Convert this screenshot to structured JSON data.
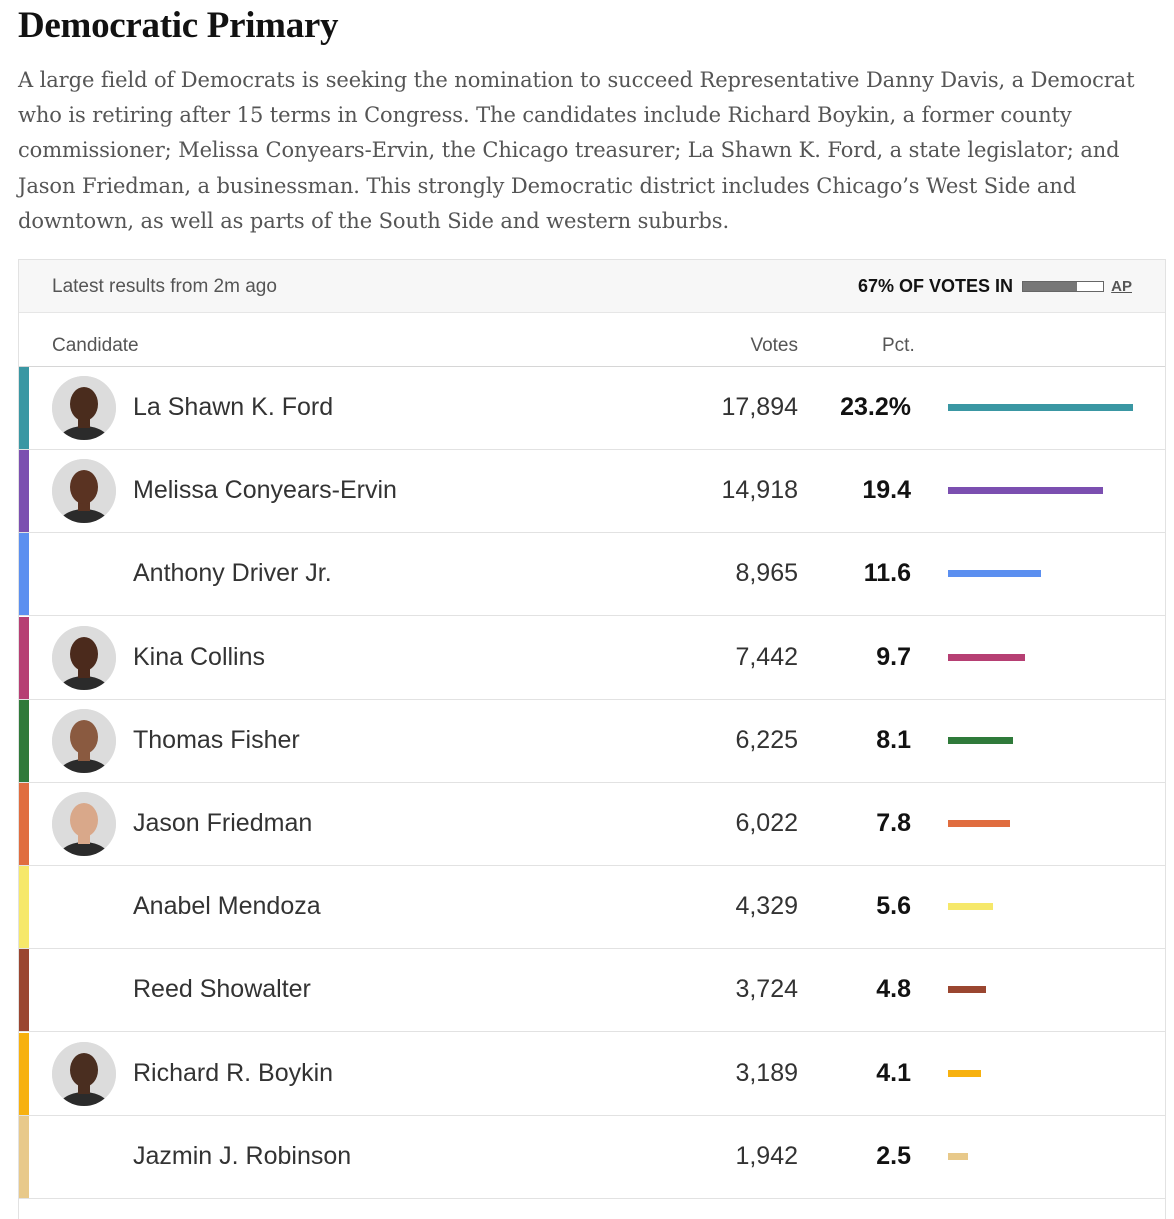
{
  "title": "Democratic Primary",
  "intro": "A large field of Democrats is seeking the nomination to succeed Representative Danny Davis, a Democrat who is retiring after 15 terms in Congress. The candidates include Richard Boykin, a former county commissioner; Melissa Conyears-Ervin, the Chicago treasurer; La Shawn K. Ford, a state legislator; and Jason Friedman, a businessman. This strongly Democratic district includes Chicago’s West Side and downtown, as well as parts of the South Side and western suburbs.",
  "status": {
    "latest": "Latest results from 2m ago",
    "reporting": "67% OF VOTES IN",
    "reporting_fraction": 0.67,
    "source": "AP"
  },
  "columns": {
    "candidate": "Candidate",
    "votes": "Votes",
    "pct": "Pct."
  },
  "candidates": [
    {
      "name": "La Shawn K. Ford",
      "votes": "17,894",
      "pct": "23.2%",
      "value": 23.2,
      "color": "#3a97a3",
      "photo": true,
      "skin": "#4a2c1d"
    },
    {
      "name": "Melissa Conyears-Ervin",
      "votes": "14,918",
      "pct": "19.4",
      "value": 19.4,
      "color": "#7b4fb0",
      "photo": true,
      "skin": "#5a3322"
    },
    {
      "name": "Anthony Driver Jr.",
      "votes": "8,965",
      "pct": "11.6",
      "value": 11.6,
      "color": "#5b8ff0",
      "photo": false
    },
    {
      "name": "Kina Collins",
      "votes": "7,442",
      "pct": "9.7",
      "value": 9.7,
      "color": "#b63f73",
      "photo": true,
      "skin": "#4b2a1c"
    },
    {
      "name": "Thomas Fisher",
      "votes": "6,225",
      "pct": "8.1",
      "value": 8.1,
      "color": "#2f7a3a",
      "photo": true,
      "skin": "#8a5a40"
    },
    {
      "name": "Jason Friedman",
      "votes": "6,022",
      "pct": "7.8",
      "value": 7.8,
      "color": "#e06d3f",
      "photo": true,
      "skin": "#d9a88a"
    },
    {
      "name": "Anabel Mendoza",
      "votes": "4,329",
      "pct": "5.6",
      "value": 5.6,
      "color": "#f6e86a",
      "photo": false
    },
    {
      "name": "Reed Showalter",
      "votes": "3,724",
      "pct": "4.8",
      "value": 4.8,
      "color": "#9a4630",
      "photo": false
    },
    {
      "name": "Richard R. Boykin",
      "votes": "3,189",
      "pct": "4.1",
      "value": 4.1,
      "color": "#f7b10f",
      "photo": true,
      "skin": "#4a2e20"
    },
    {
      "name": "Jazmin J. Robinson",
      "votes": "1,942",
      "pct": "2.5",
      "value": 2.5,
      "color": "#e8c98a",
      "photo": false
    }
  ]
}
